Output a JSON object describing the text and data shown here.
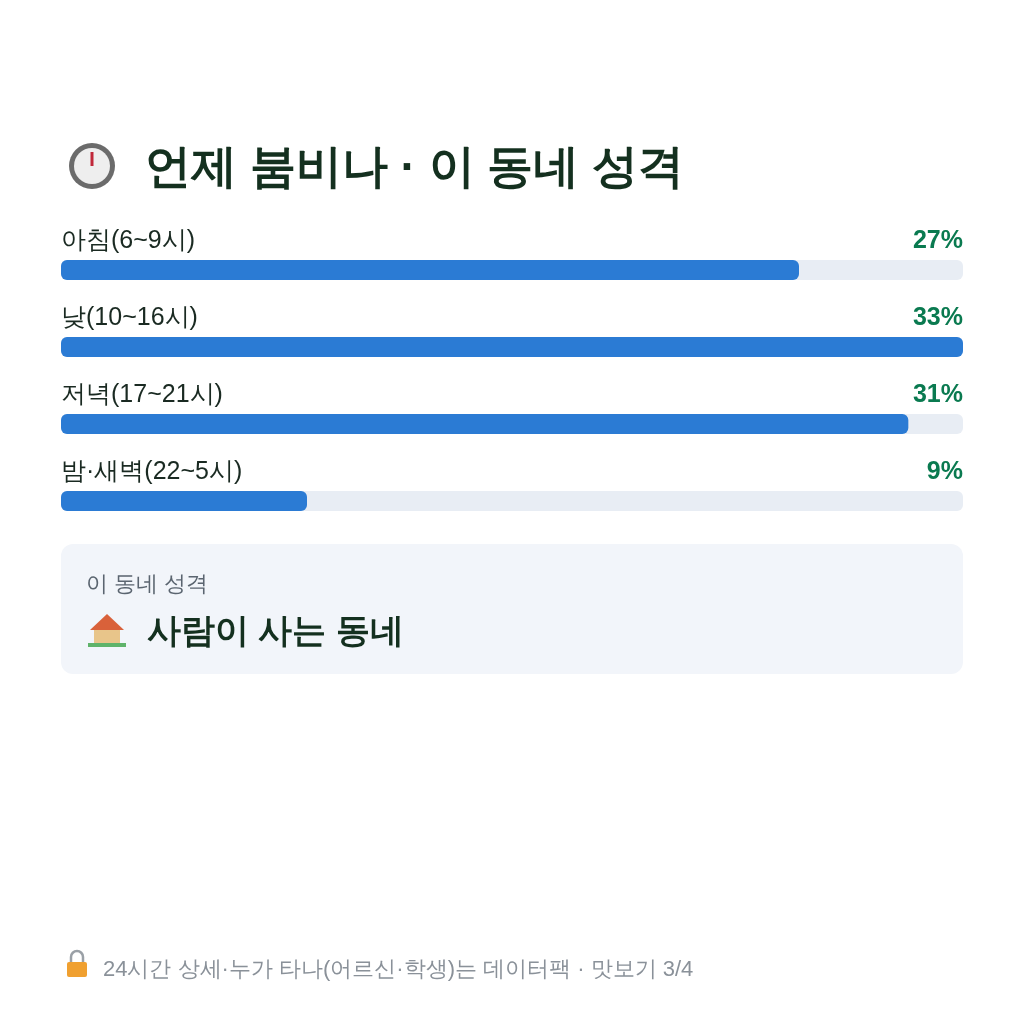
{
  "chart_data": {
    "type": "bar",
    "orientation": "horizontal",
    "title": "언제 붐비나 · 이 동네 성격",
    "categories": [
      "아침(6~9시)",
      "낮(10~16시)",
      "저녁(17~21시)",
      "밤·새벽(22~5시)"
    ],
    "values": [
      27,
      33,
      31,
      9
    ],
    "value_labels": [
      "27%",
      "33%",
      "31%",
      "9%"
    ],
    "color": "#2b7bd4",
    "annotations": [
      "이 동네 성격",
      "사람이 사는 동네",
      "24시간 상세·누가 타나(어르신·학생)는 데이터팩 · 맛보기 3/4"
    ]
  }
}
